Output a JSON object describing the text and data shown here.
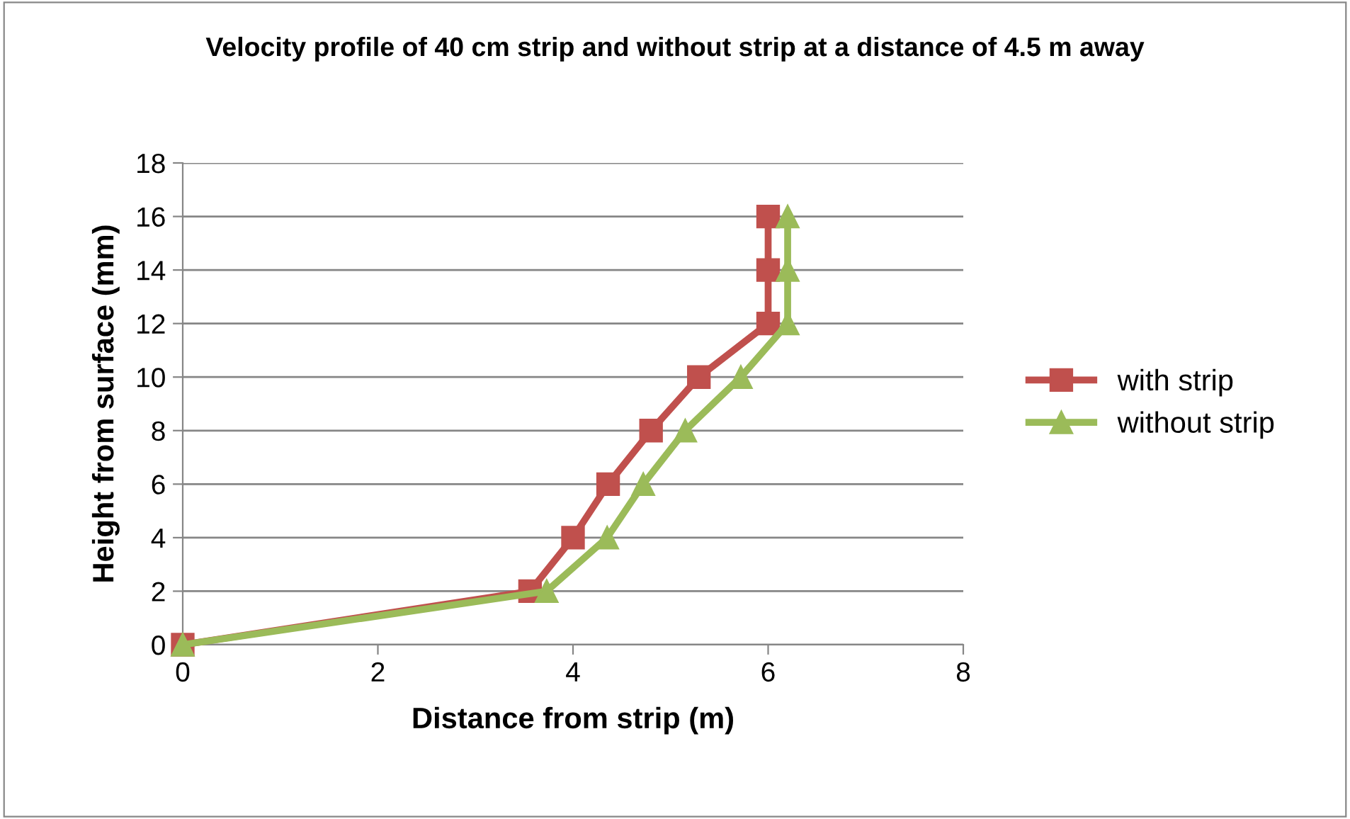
{
  "chart_data": {
    "type": "line",
    "title": "Velocity profile of 40 cm strip and without strip at a distance of 4.5 m away",
    "xlabel": "Distance from strip (m)",
    "ylabel": "Height from surface (mm)",
    "series": [
      {
        "name": "with strip",
        "color": "#c0504d",
        "marker": "square",
        "x": [
          0,
          3.56,
          4.0,
          4.36,
          4.8,
          5.29,
          6.0,
          6.0,
          6.0
        ],
        "values": [
          0,
          2,
          4,
          6,
          8,
          10,
          12,
          14,
          16
        ]
      },
      {
        "name": "without strip",
        "color": "#9bbb59",
        "marker": "triangle",
        "x": [
          0,
          3.73,
          4.35,
          4.72,
          5.15,
          5.72,
          6.2,
          6.2,
          6.2
        ],
        "values": [
          0,
          2,
          4,
          6,
          8,
          10,
          12,
          14,
          16
        ]
      }
    ],
    "xlim": [
      0,
      8
    ],
    "xticks": [
      0,
      2,
      4,
      6,
      8
    ],
    "ylim": [
      0,
      18
    ],
    "yticks": [
      0,
      2,
      4,
      6,
      8,
      10,
      12,
      14,
      16,
      18
    ],
    "grid": "y",
    "legend": "right",
    "line_style": "solid"
  }
}
